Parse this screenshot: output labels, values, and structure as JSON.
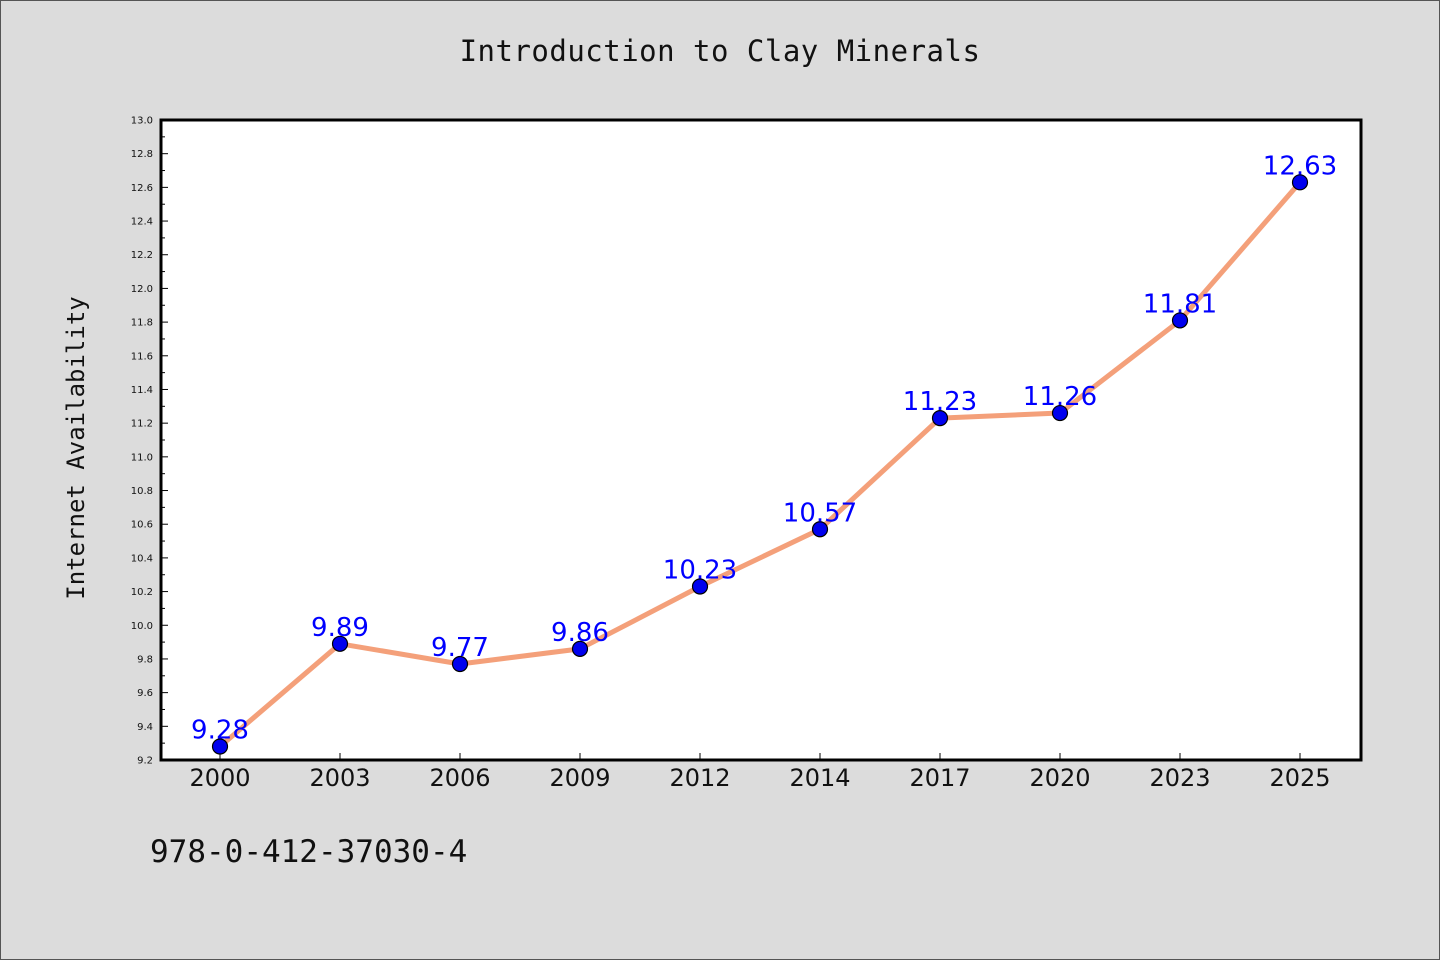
{
  "chart_data": {
    "type": "line",
    "title": "Introduction to Clay Minerals",
    "xlabel": "",
    "ylabel": "Internet Availability",
    "categories": [
      "2000",
      "2003",
      "2006",
      "2009",
      "2012",
      "2014",
      "2017",
      "2020",
      "2023",
      "2025"
    ],
    "series": [
      {
        "values": [
          9.28,
          9.89,
          9.77,
          9.86,
          10.23,
          10.57,
          11.23,
          11.26,
          11.81,
          12.63
        ],
        "data_labels": [
          "9.28",
          "9.89",
          "9.77",
          "9.86",
          "10.23",
          "10.57",
          "11.23",
          "11.26",
          "11.81",
          "12.63"
        ],
        "line_color": "#f4a07a",
        "marker_color": "#0000ee",
        "label_color": "#0000ff"
      }
    ],
    "ylim": [
      9.2,
      13.0
    ],
    "yticks": [
      "9.2",
      "9.4",
      "9.6",
      "9.8",
      "10.0",
      "10.2",
      "10.4",
      "10.6",
      "10.8",
      "11.0",
      "11.2",
      "11.4",
      "11.6",
      "11.8",
      "12.0",
      "12.2",
      "12.4",
      "12.6",
      "12.8",
      "13.0"
    ],
    "grid": false,
    "legend": "none"
  },
  "footer": {
    "isbn": "978-0-412-37030-4"
  }
}
